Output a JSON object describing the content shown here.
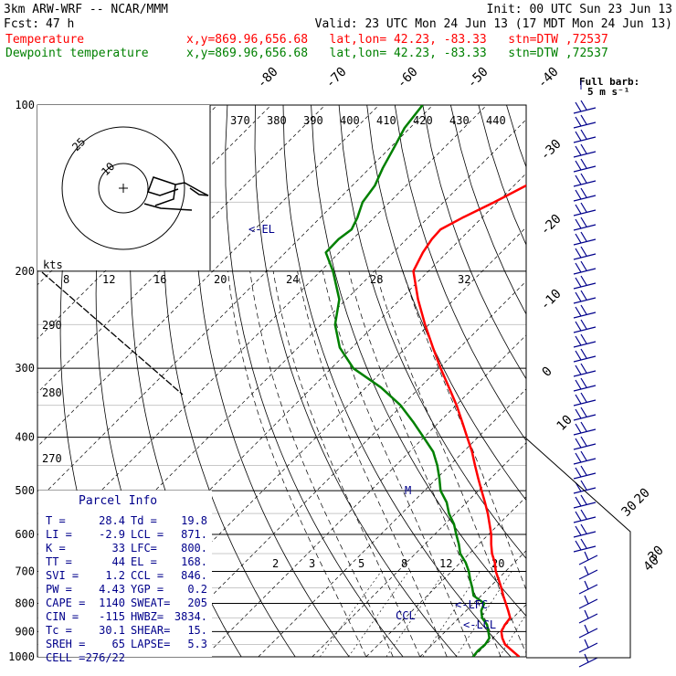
{
  "header": {
    "model": "3km ARW-WRF -- NCAR/MMM",
    "init": "Init: 00 UTC Sun 23 Jun 13",
    "fcst_label": "Fcst:",
    "fcst_value": "47 h",
    "valid": "Valid: 23 UTC Mon 24 Jun 13 (17 MDT Mon 24 Jun 13)",
    "temp_label": "Temperature",
    "temp_info": "x,y=869.96,656.68   lat,lon= 42.23, -83.33   stn=DTW ,72537",
    "dew_label": "Dewpoint temperature",
    "dew_info": "x,y=869.96,656.68   lat,lon= 42.23, -83.33   stn=DTW ,72537",
    "barb_title": "Full barb:",
    "barb_units": "5 m s⁻¹"
  },
  "colors": {
    "temperature": "#ff0000",
    "dewpoint": "#008000",
    "annotation": "#00008b"
  },
  "chart_data": {
    "type": "line",
    "y_scale": "log pressure",
    "ylabel": "",
    "xlabel": "",
    "pressure_levels": [
      100,
      200,
      300,
      400,
      500,
      600,
      700,
      800,
      900,
      1000
    ],
    "isotherm_labels": [
      "-80",
      "-70",
      "-60",
      "-50",
      "-40",
      "-30",
      "-20",
      "-10",
      "0",
      "10",
      "20",
      "30",
      "40"
    ],
    "theta_labels": [
      "370",
      "380",
      "390",
      "400",
      "410",
      "420",
      "430",
      "440"
    ],
    "theta_left_labels": [
      "290",
      "280",
      "270"
    ],
    "mixing_ratio_labels": [
      "2",
      "3",
      "5",
      "8",
      "12",
      "20"
    ],
    "hodograph": {
      "units": "kts",
      "ring_labels": [
        "25",
        "10"
      ],
      "speed_labels": [
        "8",
        "12",
        "16",
        "20",
        "24",
        "28",
        "32"
      ]
    },
    "series": [
      {
        "name": "Temperature",
        "pressure": [
          1000,
          975,
          950,
          925,
          900,
          875,
          850,
          825,
          800,
          775,
          750,
          725,
          700,
          675,
          650,
          625,
          600,
          575,
          550,
          525,
          500,
          475,
          450,
          425,
          400,
          375,
          350,
          325,
          300,
          275,
          250,
          225,
          200,
          185,
          175,
          168,
          160,
          150,
          140,
          130,
          120,
          110,
          100
        ],
        "temp_c": [
          28.4,
          26.0,
          23.5,
          21.8,
          20.4,
          19.8,
          19.5,
          17.8,
          16.0,
          14.1,
          12.3,
          10.3,
          8.2,
          6.4,
          4.2,
          2.3,
          0.5,
          -1.7,
          -4.0,
          -6.6,
          -9.4,
          -12.3,
          -15.3,
          -18.4,
          -22.0,
          -25.8,
          -29.9,
          -34.6,
          -39.7,
          -45.0,
          -50.7,
          -56.7,
          -62.8,
          -64.5,
          -65.3,
          -65.5,
          -63.6,
          -60.6,
          -57.8,
          -55.3,
          -54.2,
          -54.0,
          -53.7
        ]
      },
      {
        "name": "Dewpoint temperature",
        "pressure": [
          1000,
          975,
          950,
          925,
          900,
          875,
          850,
          825,
          800,
          775,
          750,
          725,
          700,
          675,
          650,
          625,
          600,
          575,
          550,
          525,
          500,
          475,
          450,
          425,
          400,
          375,
          350,
          325,
          300,
          275,
          250,
          225,
          200,
          185,
          175,
          168,
          160,
          150,
          140,
          130,
          120,
          110,
          100
        ],
        "dewpoint_c": [
          19.8,
          19.6,
          19.8,
          19.4,
          18.0,
          16.5,
          14.3,
          12.8,
          12.0,
          8.6,
          6.9,
          5.0,
          3.2,
          1.0,
          -1.7,
          -3.7,
          -6.0,
          -8.3,
          -11.2,
          -13.7,
          -17.0,
          -19.5,
          -22.3,
          -25.6,
          -30.1,
          -34.9,
          -40.3,
          -47.2,
          -55.9,
          -62.3,
          -67.4,
          -71.3,
          -77.7,
          -82.5,
          -82.6,
          -82.0,
          -83.1,
          -85.0,
          -85.8,
          -87.6,
          -89.2,
          -91.0,
          -91.9
        ]
      }
    ],
    "annotations": [
      "<-EL",
      "M",
      "<-LFC",
      "<-LCL",
      "CCL"
    ],
    "wind_barb_speed_labels": [
      "30",
      "40"
    ]
  },
  "parcel_info": {
    "title": "Parcel Info",
    "rows": [
      [
        "T  =",
        "28.4",
        "Td =",
        "19.8"
      ],
      [
        "LI =",
        "-2.9",
        "LCL =",
        "871."
      ],
      [
        "K  =",
        "33",
        "LFC=",
        "800."
      ],
      [
        "TT =",
        "44",
        "EL  =",
        "168."
      ],
      [
        "SVI =",
        "1.2",
        "CCL =",
        "846."
      ],
      [
        "PW =",
        "4.43",
        "YGP =",
        "0.2"
      ],
      [
        "CAPE =",
        "1140",
        "SWEAT=",
        "205"
      ],
      [
        "CIN =",
        "-115",
        "HWBZ=",
        "3834."
      ],
      [
        "Tc =",
        "30.1",
        "SHEAR=",
        "15."
      ],
      [
        "SREH =",
        "65",
        "LAPSE=",
        "5.3"
      ],
      [
        "CELL =",
        "276/22",
        "",
        ""
      ]
    ]
  }
}
